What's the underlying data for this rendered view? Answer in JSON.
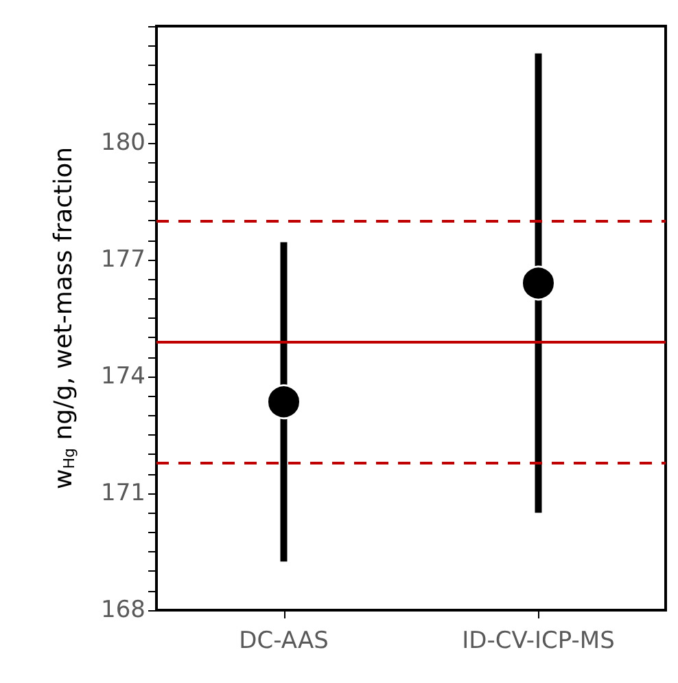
{
  "chart_data": {
    "type": "scatter",
    "ylabel": "w$_{Hg}$ ng/g, wet-mass fraction",
    "categories": [
      "DC-AAS",
      "ID-CV-ICP-MS"
    ],
    "series": [
      {
        "color": "#000000",
        "values": [
          173.35,
          176.4
        ],
        "errors": [
          4.1,
          5.9
        ]
      }
    ],
    "marker": "circle",
    "grid": false,
    "ylim": [
      168,
      183
    ],
    "yticks": [
      168,
      {
        "value": 168.5,
        "label": null
      },
      {
        "value": 169,
        "label": null
      },
      {
        "value": 169.5,
        "label": null
      },
      {
        "value": 170,
        "label": null
      },
      {
        "value": 170.5,
        "label": null
      },
      171,
      {
        "value": 171.5,
        "label": null
      },
      {
        "value": 172,
        "label": null
      },
      {
        "value": 172.5,
        "label": null
      },
      {
        "value": 173,
        "label": null
      },
      {
        "value": 173.5,
        "label": null
      },
      174,
      {
        "value": 174.5,
        "label": null
      },
      {
        "value": 175,
        "label": null
      },
      {
        "value": 175.5,
        "label": null
      },
      {
        "value": 176,
        "label": null
      },
      {
        "value": 176.5,
        "label": null
      },
      177,
      {
        "value": 177.5,
        "label": null
      },
      {
        "value": 178,
        "label": null
      },
      {
        "value": 178.5,
        "label": null
      },
      {
        "value": 179,
        "label": null
      },
      {
        "value": 179.5,
        "label": null
      },
      180,
      {
        "value": 180.5,
        "label": null
      },
      {
        "value": 181,
        "label": null
      },
      {
        "value": 181.5,
        "label": null
      },
      {
        "value": 182,
        "label": null
      },
      {
        "value": 182.5,
        "label": null
      },
      {
        "value": 183,
        "label": null
      }
    ],
    "ref_lines": [
      {
        "axis": "y",
        "value": 174.9,
        "color": "#c00000",
        "line_style": "solid"
      },
      {
        "axis": "y",
        "value": 178.0,
        "color": "#c00000",
        "line_style": "dashed"
      },
      {
        "axis": "y",
        "value": 171.8,
        "color": "#c00000",
        "line_style": "dashed"
      }
    ]
  }
}
